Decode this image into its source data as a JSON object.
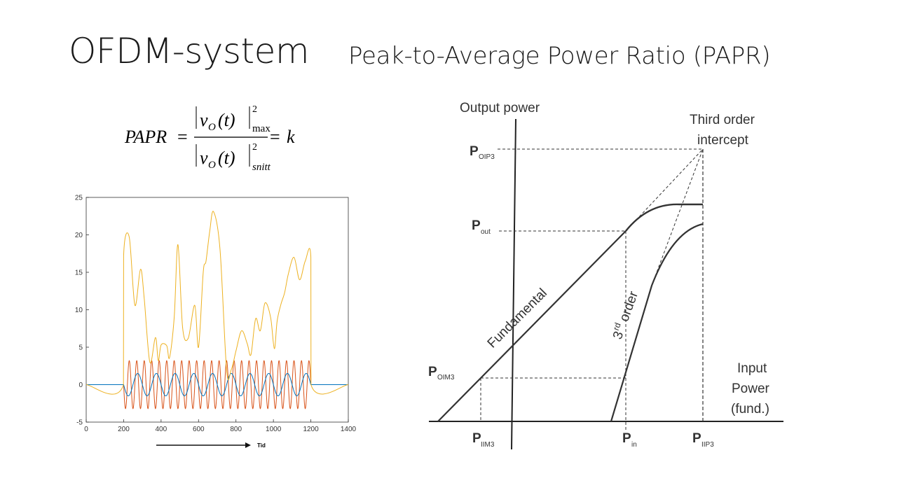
{
  "slide": {
    "title": "OFDM-system",
    "subtitle": "Peak-to-Average Power Ratio (PAPR)"
  },
  "formula": {
    "lhs": "PAPR",
    "numerator": "|v",
    "sub_o": "O",
    "t": "(t)",
    "sup": "2",
    "sub_max": "max",
    "sub_snitt": "snitt",
    "rhs": "k"
  },
  "chart_data": [
    {
      "type": "line",
      "xlabel": "Tid",
      "ylabel": "",
      "xlim": [
        0,
        1400
      ],
      "ylim": [
        -5,
        25
      ],
      "xticks": [
        0,
        200,
        400,
        600,
        800,
        1000,
        1200,
        1400
      ],
      "yticks": [
        -5,
        0,
        5,
        10,
        15,
        20,
        25
      ],
      "grid": false,
      "series": [
        {
          "color": "#EDB120",
          "x": [
            0,
            199,
            200,
            230,
            260,
            290,
            310,
            340,
            370,
            385,
            400,
            430,
            445,
            470,
            490,
            515,
            545,
            580,
            600,
            625,
            640,
            660,
            680,
            715,
            750,
            775,
            800,
            830,
            860,
            880,
            905,
            930,
            955,
            985,
            1005,
            1020,
            1040,
            1060,
            1080,
            1110,
            1140,
            1170,
            1200,
            1201,
            1400
          ],
          "values": [
            0,
            0,
            17.2,
            19.7,
            10.6,
            15.4,
            11.5,
            3.0,
            6.3,
            3.2,
            5.3,
            5.2,
            3.6,
            9.0,
            18.7,
            7.6,
            6.2,
            10.6,
            5.0,
            15.0,
            16.5,
            20.5,
            23.1,
            18.0,
            1.9,
            2.0,
            4.5,
            7.2,
            5.5,
            4.0,
            8.8,
            7.2,
            10.9,
            9.0,
            4.8,
            8.5,
            10.7,
            12.3,
            14.8,
            17.0,
            14.0,
            16.5,
            17.0,
            0,
            0
          ]
        },
        {
          "color": "#D95319",
          "amplitude": 3.2,
          "period": 40,
          "x_start": 200,
          "x_end": 1200
        },
        {
          "color": "#0072BD",
          "amplitude": 1.5,
          "period": 100,
          "x_start": 200,
          "x_end": 1200
        }
      ]
    },
    {
      "type": "line",
      "title": "",
      "xlabel": "Input Power (fund.)",
      "ylabel": "Output power",
      "series": [
        {
          "name": "Fundamental"
        },
        {
          "name": "3rd order"
        }
      ],
      "annotations": [
        "Third order intercept",
        "P_OIP3",
        "P_out",
        "P_OIM3",
        "P_IIM3",
        "P_in",
        "P_IIP3"
      ]
    }
  ],
  "ip3": {
    "ylabel": "Output power",
    "xlabel_1": "Input",
    "xlabel_2": "Power",
    "xlabel_3": "(fund.)",
    "intercept_1": "Third order",
    "intercept_2": "intercept",
    "fundamental": "Fundamental",
    "third_order": "order",
    "third_num": "3",
    "third_sup": "rd",
    "p": "P",
    "oip3": "OIP3",
    "out": "out",
    "oim3": "OIM3",
    "iim3": "IIM3",
    "in": "in",
    "iip3": "IIP3"
  }
}
